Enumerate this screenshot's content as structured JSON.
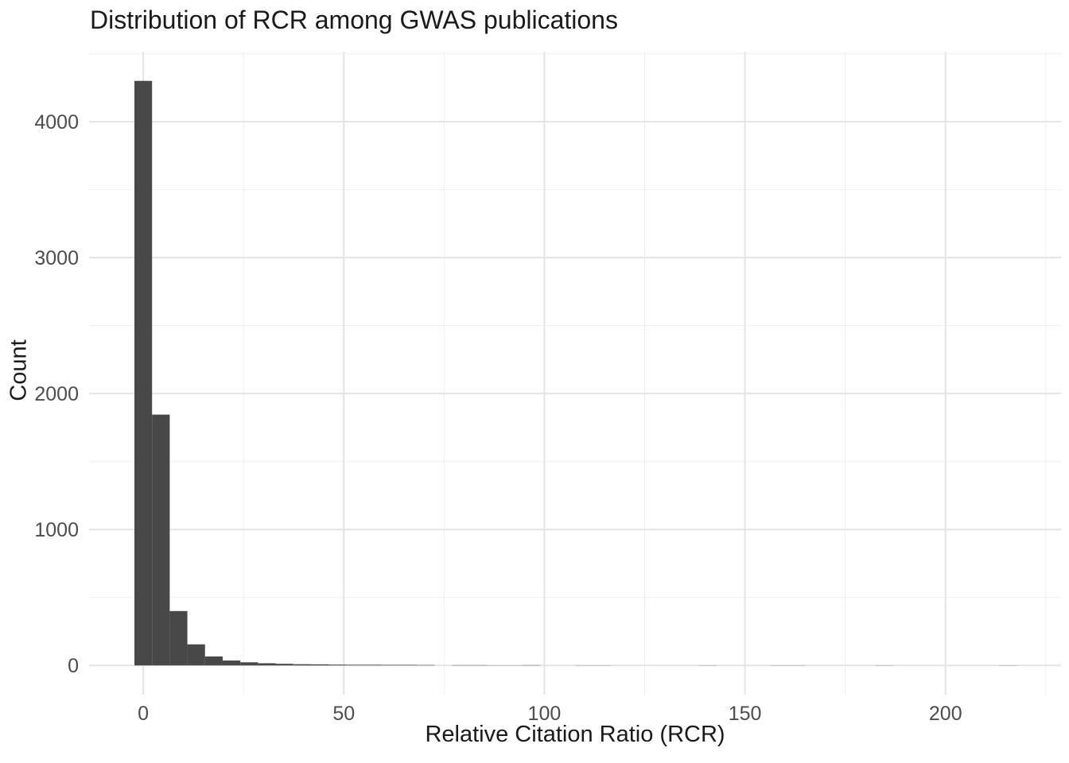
{
  "title": "Distribution of RCR among GWAS publications",
  "chart_data": {
    "type": "bar",
    "variant": "histogram",
    "title": "Distribution of RCR among GWAS publications",
    "xlabel": "Relative Citation Ratio (RCR)",
    "ylabel": "Count",
    "bin_width": 4.4,
    "bins": [
      {
        "center": 0,
        "count": 4300
      },
      {
        "center": 4.4,
        "count": 1845
      },
      {
        "center": 8.8,
        "count": 400
      },
      {
        "center": 13.2,
        "count": 155
      },
      {
        "center": 17.6,
        "count": 66
      },
      {
        "center": 22,
        "count": 36
      },
      {
        "center": 26.4,
        "count": 23
      },
      {
        "center": 30.8,
        "count": 16
      },
      {
        "center": 35.2,
        "count": 12
      },
      {
        "center": 39.6,
        "count": 9
      },
      {
        "center": 44,
        "count": 8
      },
      {
        "center": 48.4,
        "count": 6
      },
      {
        "center": 52.8,
        "count": 5
      },
      {
        "center": 57.2,
        "count": 5
      },
      {
        "center": 61.6,
        "count": 4
      },
      {
        "center": 66,
        "count": 4
      },
      {
        "center": 70.4,
        "count": 3
      },
      {
        "center": 79.2,
        "count": 2
      },
      {
        "center": 83.6,
        "count": 2
      },
      {
        "center": 88,
        "count": 1
      },
      {
        "center": 92.4,
        "count": 1
      },
      {
        "center": 96.8,
        "count": 2
      },
      {
        "center": 110,
        "count": 1
      },
      {
        "center": 114.4,
        "count": 1
      },
      {
        "center": 140.8,
        "count": 1
      },
      {
        "center": 158.4,
        "count": 1
      },
      {
        "center": 162.8,
        "count": 1
      },
      {
        "center": 184.8,
        "count": 1
      },
      {
        "center": 215.6,
        "count": 1
      }
    ],
    "x_ticks": [
      0,
      50,
      100,
      150,
      200
    ],
    "x_minor_ticks": [
      25,
      75,
      125,
      175,
      225
    ],
    "y_ticks": [
      0,
      1000,
      2000,
      3000,
      4000
    ],
    "y_minor_ticks": [
      500,
      1500,
      2500,
      3500,
      4500
    ],
    "xlim": [
      -13.5,
      228.8
    ],
    "ylim": [
      -215,
      4515
    ],
    "grid": true,
    "legend": false,
    "colors": {
      "bar": "#484848",
      "grid_major": "#e4e4e4",
      "grid_minor": "#efefef",
      "axis_text": "#4d4d4d",
      "title_text": "#1a1a1a",
      "background": "#ffffff"
    }
  }
}
